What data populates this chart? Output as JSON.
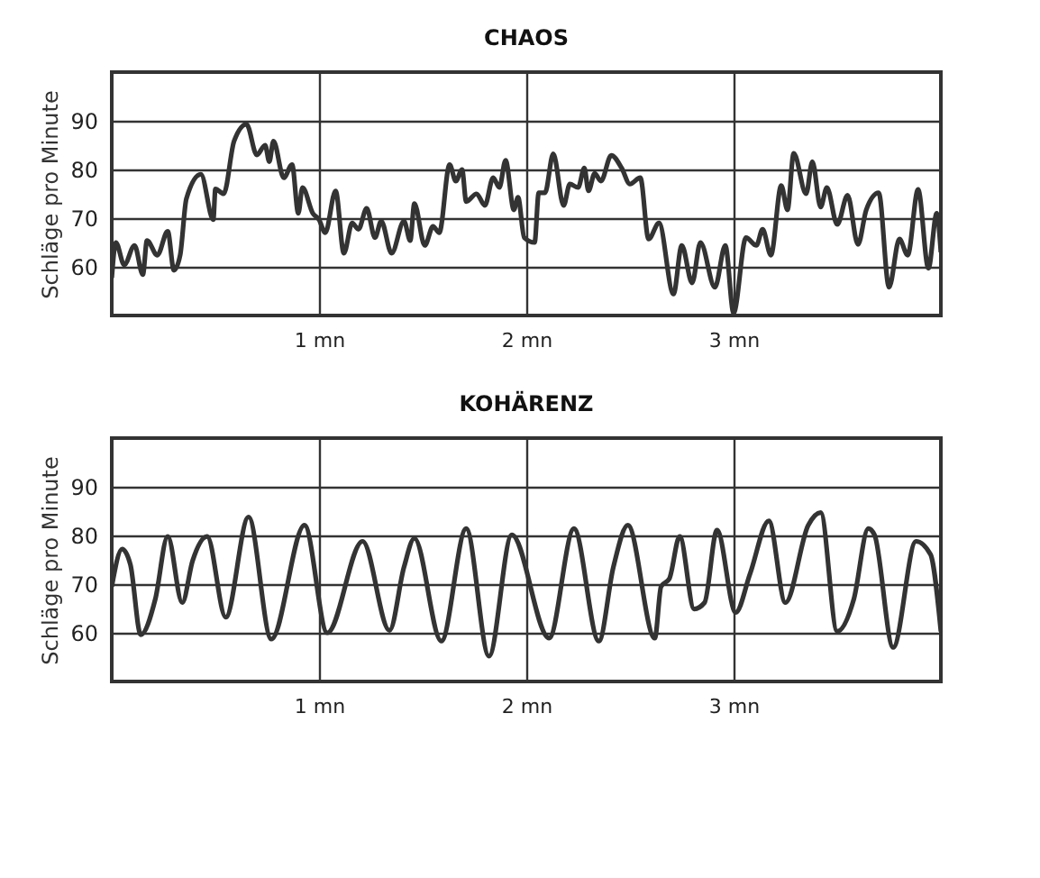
{
  "chart_data": [
    {
      "type": "line",
      "title": "CHAOS",
      "ylabel": "Schläge pro Minute",
      "xlim": [
        0,
        4
      ],
      "ylim": [
        50,
        100
      ],
      "yticks": [
        60,
        70,
        80,
        90
      ],
      "xticks": [
        {
          "value": 1,
          "label": "1 mn"
        },
        {
          "value": 2,
          "label": "2 mn"
        },
        {
          "value": 3,
          "label": "3 mn"
        }
      ],
      "grid": true,
      "line_style": "solid",
      "series": [
        {
          "color": "#333333",
          "x": [
            0,
            0.02,
            0.06,
            0.11,
            0.15,
            0.17,
            0.22,
            0.27,
            0.3,
            0.33,
            0.36,
            0.43,
            0.49,
            0.5,
            0.54,
            0.59,
            0.65,
            0.7,
            0.74,
            0.76,
            0.78,
            0.83,
            0.87,
            0.9,
            0.92,
            0.97,
            1.0,
            1.03,
            1.08,
            1.12,
            1.16,
            1.19,
            1.23,
            1.27,
            1.3,
            1.35,
            1.41,
            1.44,
            1.46,
            1.51,
            1.55,
            1.58,
            1.63,
            1.66,
            1.69,
            1.71,
            1.76,
            1.8,
            1.84,
            1.87,
            1.9,
            1.94,
            1.96,
            1.99,
            2.04,
            2.06,
            2.09,
            2.13,
            2.18,
            2.21,
            2.25,
            2.28,
            2.3,
            2.33,
            2.36,
            2.41,
            2.46,
            2.5,
            2.55,
            2.59,
            2.64,
            2.71,
            2.75,
            2.8,
            2.84,
            2.91,
            2.96,
            3.0,
            3.06,
            3.11,
            3.14,
            3.18,
            3.23,
            3.26,
            3.29,
            3.35,
            3.38,
            3.42,
            3.45,
            3.5,
            3.55,
            3.6,
            3.64,
            3.7,
            3.75,
            3.8,
            3.84,
            3.89,
            3.94,
            3.98,
            4.0
          ],
          "values": [
            57.7,
            65,
            60.4,
            64.4,
            58.4,
            65.4,
            62.4,
            67.3,
            59.3,
            62.4,
            74,
            79,
            69.7,
            76,
            75,
            85.8,
            89.3,
            83,
            85,
            81.6,
            85.8,
            78.3,
            81,
            71,
            76.3,
            71,
            69.7,
            67,
            75.6,
            62.8,
            69,
            67.7,
            72,
            66,
            69.4,
            62.8,
            69.4,
            65.4,
            73,
            64.4,
            68.3,
            67,
            81,
            77.6,
            80,
            73.4,
            75,
            72.6,
            78.3,
            76.3,
            81.9,
            71.7,
            74.3,
            66,
            65,
            75.2,
            75.2,
            83.2,
            72.6,
            77,
            76.3,
            80.3,
            75.6,
            79.2,
            77.6,
            82.9,
            80.3,
            77,
            78.3,
            65.7,
            69,
            54.4,
            64.4,
            56.7,
            65,
            55.8,
            64.4,
            50.5,
            66,
            64.4,
            67.7,
            62.4,
            76.7,
            71.7,
            83.3,
            75,
            81.6,
            72.3,
            76.3,
            68.7,
            74.7,
            64.6,
            71.7,
            75.2,
            55.8,
            65.7,
            62.4,
            75.9,
            59.7,
            71,
            63
          ]
        }
      ]
    },
    {
      "type": "line",
      "title": "KOHÄRENZ",
      "ylabel": "Schläge pro Minute",
      "xlim": [
        0,
        4
      ],
      "ylim": [
        50,
        100
      ],
      "yticks": [
        60,
        70,
        80,
        90
      ],
      "xticks": [
        {
          "value": 1,
          "label": "1 mn"
        },
        {
          "value": 2,
          "label": "2 mn"
        },
        {
          "value": 3,
          "label": "3 mn"
        }
      ],
      "grid": true,
      "line_style": "solid",
      "series": [
        {
          "color": "#333333",
          "x": [
            0,
            0.05,
            0.09,
            0.14,
            0.21,
            0.27,
            0.34,
            0.39,
            0.46,
            0.55,
            0.66,
            0.77,
            0.93,
            1.04,
            1.21,
            1.34,
            1.41,
            1.46,
            1.59,
            1.71,
            1.82,
            1.93,
            2.11,
            2.23,
            2.35,
            2.42,
            2.49,
            2.62,
            2.65,
            2.69,
            2.74,
            2.81,
            2.86,
            2.92,
            3.01,
            3.08,
            3.17,
            3.25,
            3.36,
            3.42,
            3.5,
            3.58,
            3.65,
            3.68,
            3.77,
            3.88,
            3.95,
            4.0
          ],
          "values": [
            69.5,
            77.2,
            74,
            59.6,
            66.9,
            79.8,
            66.2,
            74.8,
            79.8,
            63.2,
            83.8,
            58.7,
            82.1,
            60,
            78.8,
            60.5,
            73.5,
            79.4,
            58.3,
            81.4,
            55.2,
            80.1,
            58.9,
            81.4,
            58.3,
            73.5,
            82.1,
            58.9,
            69.5,
            71.1,
            79.8,
            64.9,
            66.2,
            81.1,
            64.2,
            72.2,
            83,
            66.2,
            82.1,
            84.7,
            60.3,
            66.9,
            81.4,
            80.1,
            57,
            78.8,
            76.1,
            60.3
          ]
        }
      ]
    }
  ]
}
